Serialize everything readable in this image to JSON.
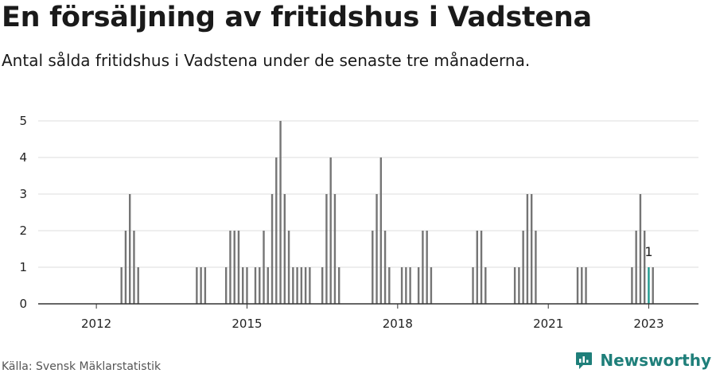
{
  "title": "En försäljning av fritidshus i Vadstena",
  "subtitle": "Antal sålda fritidshus i Vadstena under de senaste tre månaderna.",
  "source": "Källa: Svensk Mäklarstatistik",
  "brand": {
    "name": "Newsworthy",
    "icon": "newsworthy-logo-icon"
  },
  "colors": {
    "bar": "#757575",
    "highlight": "#1f9a8f",
    "grid": "#dddddd",
    "axis": "#333333",
    "brand": "#1f7f7a"
  },
  "chart_data": {
    "type": "bar",
    "x_start": "2011-01",
    "interval": "month",
    "ylim": [
      0,
      5
    ],
    "yticks": [
      0,
      1,
      2,
      3,
      4,
      5
    ],
    "xticks": [
      "2012",
      "2015",
      "2018",
      "2021",
      "2023"
    ],
    "grid": true,
    "legend": "none",
    "values": [
      0,
      0,
      0,
      0,
      0,
      0,
      0,
      0,
      0,
      0,
      0,
      0,
      0,
      0,
      0,
      0,
      0,
      0,
      1,
      2,
      3,
      2,
      1,
      0,
      0,
      0,
      0,
      0,
      0,
      0,
      0,
      0,
      0,
      0,
      0,
      0,
      1,
      1,
      1,
      0,
      0,
      0,
      0,
      1,
      2,
      2,
      2,
      1,
      1,
      0,
      1,
      1,
      2,
      1,
      3,
      4,
      5,
      3,
      2,
      1,
      1,
      1,
      1,
      1,
      0,
      0,
      1,
      3,
      4,
      3,
      1,
      0,
      0,
      0,
      0,
      0,
      0,
      0,
      2,
      3,
      4,
      2,
      1,
      0,
      0,
      1,
      1,
      1,
      0,
      1,
      2,
      2,
      1,
      0,
      0,
      0,
      0,
      0,
      0,
      0,
      0,
      0,
      1,
      2,
      2,
      1,
      0,
      0,
      0,
      0,
      0,
      0,
      1,
      1,
      2,
      3,
      3,
      2,
      0,
      0,
      0,
      0,
      0,
      0,
      0,
      0,
      0,
      1,
      1,
      1,
      0,
      0,
      0,
      0,
      0,
      0,
      0,
      0,
      0,
      0,
      1,
      2,
      3,
      2,
      1,
      1
    ],
    "highlight_index": 144,
    "highlight_label": "1"
  }
}
